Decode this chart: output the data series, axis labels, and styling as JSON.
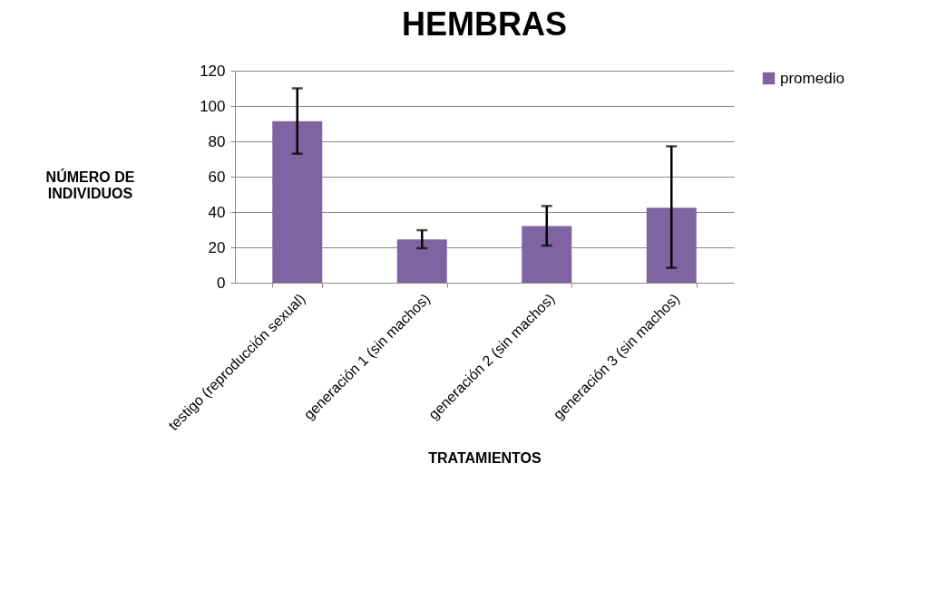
{
  "chart_data": {
    "type": "bar",
    "title": "HEMBRAS",
    "xlabel": "TRATAMIENTOS",
    "ylabel": "NÚMERO DE INDIVIDUOS",
    "categories": [
      "testigo (reproducción sexual)",
      "generación 1 (sin machos)",
      "generación 2 (sin machos)",
      "generación 3 (sin machos)"
    ],
    "series": [
      {
        "name": "promedio",
        "color": "#8064a2",
        "values": [
          91.4,
          24.5,
          32,
          42.4
        ],
        "errors": [
          [
            73,
            110
          ],
          [
            19.5,
            29.7
          ],
          [
            21,
            43.4
          ],
          [
            8.4,
            77.2
          ]
        ]
      }
    ],
    "ylim": [
      0,
      120
    ],
    "yticks": [
      0,
      20,
      40,
      60,
      80,
      100,
      120
    ],
    "grid": "y",
    "legend": "right"
  }
}
